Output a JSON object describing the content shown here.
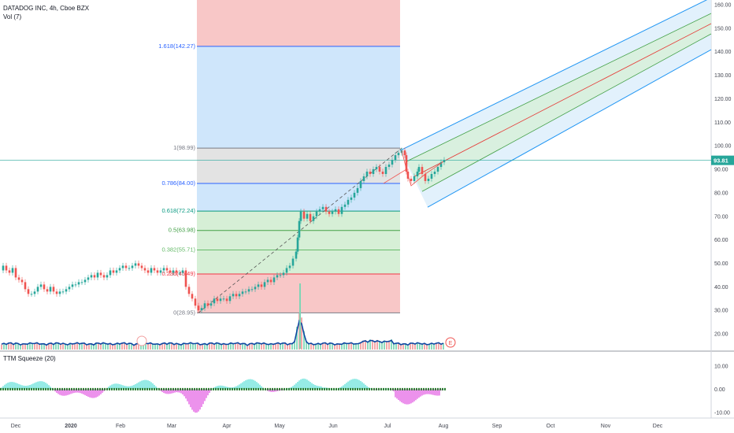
{
  "header": {
    "title": "DATADOG INC, 4h, Cboe BZX",
    "vol_label": "Vol (7)"
  },
  "indicator": {
    "label": "TTM Squeeze (20)"
  },
  "colors": {
    "up": "#26a69a",
    "down": "#ef5350",
    "volume_line": "#0d47a1",
    "fib_top_zone": "#f8c7c7",
    "fib_ext_zone": "#cfe6fb",
    "fib_grey_zone": "#e3e3e3",
    "fib_green_zone": "#d6efd6",
    "channel_fill": "#dbeefb",
    "channel_mid": "#e53935",
    "squeeze_cyan": "#7ce6e0",
    "squeeze_pink": "#e878e8",
    "squeeze_dots": "#2e7d32",
    "price_badge": "#26a69a"
  },
  "chart_data": {
    "type": "candlestick",
    "symbol": "DATADOG INC",
    "timeframe": "4h",
    "exchange": "Cboe BZX",
    "price_axis": {
      "ticks": [
        "160.00",
        "150.00",
        "140.00",
        "130.00",
        "120.00",
        "110.00",
        "100.00",
        "90.00",
        "80.00",
        "70.00",
        "60.00",
        "50.00",
        "40.00",
        "30.00",
        "20.00"
      ],
      "range": [
        13,
        162
      ],
      "last_price": "93.81"
    },
    "indicator_axis": {
      "ticks": [
        "10.00",
        "0.00",
        "-10.00"
      ],
      "range": [
        -12,
        16
      ]
    },
    "time_axis": {
      "ticks": [
        "Dec",
        "2020",
        "Feb",
        "Mar",
        "Apr",
        "May",
        "Jun",
        "Jul",
        "Aug",
        "Sep",
        "Oct",
        "Nov",
        "Dec"
      ]
    },
    "fib_levels": [
      {
        "label": "1.618(142.27)",
        "ratio": 1.618,
        "price": 142.27,
        "color": "#2962ff"
      },
      {
        "label": "1(98.99)",
        "ratio": 1,
        "price": 98.99,
        "color": "#787b86"
      },
      {
        "label": "0.786(84.00)",
        "ratio": 0.786,
        "price": 84.0,
        "color": "#2962ff"
      },
      {
        "label": "0.618(72.24)",
        "ratio": 0.618,
        "price": 72.24,
        "color": "#089981"
      },
      {
        "label": "0.5(63.98)",
        "ratio": 0.5,
        "price": 63.98,
        "color": "#43a047"
      },
      {
        "label": "0.382(55.71)",
        "ratio": 0.382,
        "price": 55.71,
        "color": "#66bb6a"
      },
      {
        "label": "0.236(45.49)",
        "ratio": 0.236,
        "price": 45.49,
        "color": "#f23645"
      },
      {
        "label": "0(28.95)",
        "ratio": 0,
        "price": 28.95,
        "color": "#787b86"
      }
    ],
    "price_path": [
      [
        0,
        47
      ],
      [
        4,
        49
      ],
      [
        8,
        47
      ],
      [
        12,
        46
      ],
      [
        16,
        48
      ],
      [
        20,
        44
      ],
      [
        24,
        43
      ],
      [
        28,
        42
      ],
      [
        32,
        39
      ],
      [
        36,
        37
      ],
      [
        40,
        37
      ],
      [
        44,
        38
      ],
      [
        48,
        40
      ],
      [
        52,
        41
      ],
      [
        56,
        39
      ],
      [
        60,
        38
      ],
      [
        64,
        40
      ],
      [
        68,
        38
      ],
      [
        72,
        37
      ],
      [
        76,
        38
      ],
      [
        80,
        38
      ],
      [
        84,
        39
      ],
      [
        88,
        40
      ],
      [
        92,
        41
      ],
      [
        96,
        41
      ],
      [
        100,
        42
      ],
      [
        104,
        42
      ],
      [
        108,
        43
      ],
      [
        112,
        44
      ],
      [
        116,
        45
      ],
      [
        120,
        44
      ],
      [
        124,
        46
      ],
      [
        128,
        45
      ],
      [
        132,
        44
      ],
      [
        136,
        45
      ],
      [
        140,
        47
      ],
      [
        144,
        46
      ],
      [
        148,
        47
      ],
      [
        152,
        48
      ],
      [
        156,
        49
      ],
      [
        160,
        48
      ],
      [
        164,
        48
      ],
      [
        168,
        49
      ],
      [
        172,
        50
      ],
      [
        176,
        49
      ],
      [
        180,
        48
      ],
      [
        184,
        47
      ],
      [
        188,
        46
      ],
      [
        192,
        48
      ],
      [
        196,
        47
      ],
      [
        200,
        46
      ],
      [
        204,
        47
      ],
      [
        208,
        48
      ],
      [
        212,
        47
      ],
      [
        216,
        46
      ],
      [
        220,
        47
      ],
      [
        224,
        46
      ],
      [
        228,
        46
      ],
      [
        232,
        47
      ],
      [
        236,
        40
      ],
      [
        240,
        37
      ],
      [
        244,
        35
      ],
      [
        248,
        32
      ],
      [
        252,
        30
      ],
      [
        256,
        31
      ],
      [
        260,
        33
      ],
      [
        264,
        32
      ],
      [
        268,
        33
      ],
      [
        272,
        35
      ],
      [
        276,
        34
      ],
      [
        280,
        35
      ],
      [
        284,
        35
      ],
      [
        288,
        34
      ],
      [
        292,
        36
      ],
      [
        296,
        37
      ],
      [
        300,
        36
      ],
      [
        304,
        37
      ],
      [
        308,
        38
      ],
      [
        312,
        38
      ],
      [
        316,
        39
      ],
      [
        320,
        39
      ],
      [
        324,
        40
      ],
      [
        328,
        41
      ],
      [
        332,
        40
      ],
      [
        336,
        42
      ],
      [
        340,
        43
      ],
      [
        344,
        42
      ],
      [
        348,
        44
      ],
      [
        352,
        45
      ],
      [
        356,
        45
      ],
      [
        360,
        46
      ],
      [
        364,
        48
      ],
      [
        368,
        49
      ],
      [
        372,
        52
      ],
      [
        376,
        55
      ],
      [
        378,
        61
      ],
      [
        380,
        68
      ],
      [
        382,
        72
      ],
      [
        386,
        69
      ],
      [
        390,
        71
      ],
      [
        394,
        68
      ],
      [
        398,
        70
      ],
      [
        402,
        72
      ],
      [
        406,
        73
      ],
      [
        410,
        74
      ],
      [
        414,
        72
      ],
      [
        418,
        71
      ],
      [
        422,
        72
      ],
      [
        426,
        73
      ],
      [
        430,
        71
      ],
      [
        434,
        74
      ],
      [
        438,
        75
      ],
      [
        442,
        77
      ],
      [
        446,
        78
      ],
      [
        450,
        80
      ],
      [
        454,
        82
      ],
      [
        458,
        85
      ],
      [
        462,
        87
      ],
      [
        466,
        89
      ],
      [
        470,
        88
      ],
      [
        474,
        90
      ],
      [
        478,
        91
      ],
      [
        482,
        89
      ],
      [
        486,
        88
      ],
      [
        490,
        91
      ],
      [
        494,
        92
      ],
      [
        498,
        94
      ],
      [
        502,
        96
      ],
      [
        506,
        97
      ],
      [
        510,
        98
      ],
      [
        514,
        96
      ],
      [
        516,
        89
      ],
      [
        518,
        86
      ],
      [
        522,
        85
      ],
      [
        526,
        87
      ],
      [
        530,
        89
      ],
      [
        532,
        91
      ],
      [
        536,
        88
      ],
      [
        540,
        85
      ],
      [
        544,
        86
      ],
      [
        548,
        88
      ],
      [
        552,
        89
      ],
      [
        556,
        91
      ],
      [
        560,
        93
      ],
      [
        564,
        94
      ]
    ],
    "series": [
      {
        "name": "Vol (7)"
      },
      {
        "name": "TTM Squeeze (20)"
      }
    ],
    "annotations": [
      "E"
    ]
  }
}
